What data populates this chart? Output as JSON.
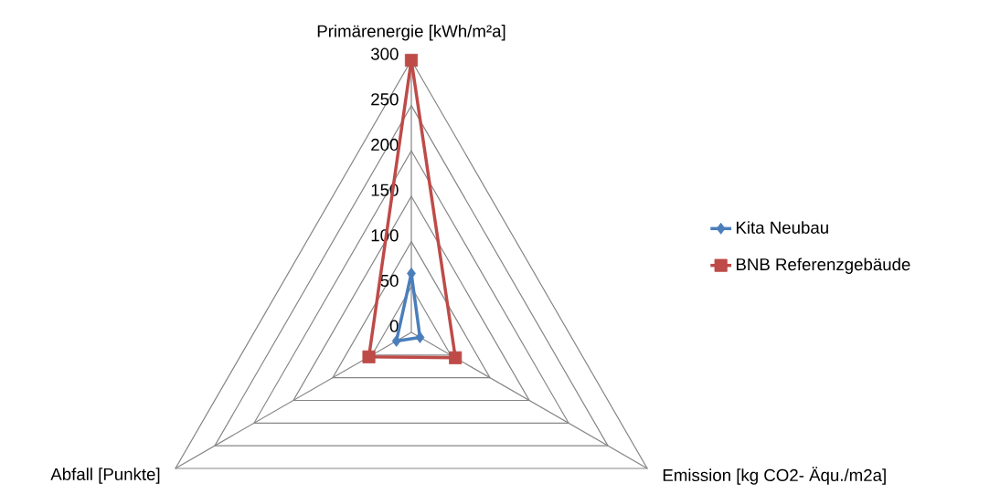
{
  "chart_data": {
    "type": "radar",
    "categories": [
      "Primärenergie [kWh/m²a]",
      "Emission [kg CO2- Äqu./m2a]",
      "Abfall [Punkte]"
    ],
    "series": [
      {
        "name": "Kita Neubau",
        "color": "#4a7ebb",
        "marker": "diamond",
        "values": [
          65,
          11,
          19
        ]
      },
      {
        "name": "BNB Referenzgebäude",
        "color": "#be4b48",
        "marker": "square",
        "values": [
          300,
          56,
          54
        ]
      }
    ],
    "ylim": [
      0,
      300
    ],
    "yticks": [
      0,
      50,
      100,
      150,
      200,
      250,
      300
    ],
    "grid": true,
    "legend": "right"
  }
}
